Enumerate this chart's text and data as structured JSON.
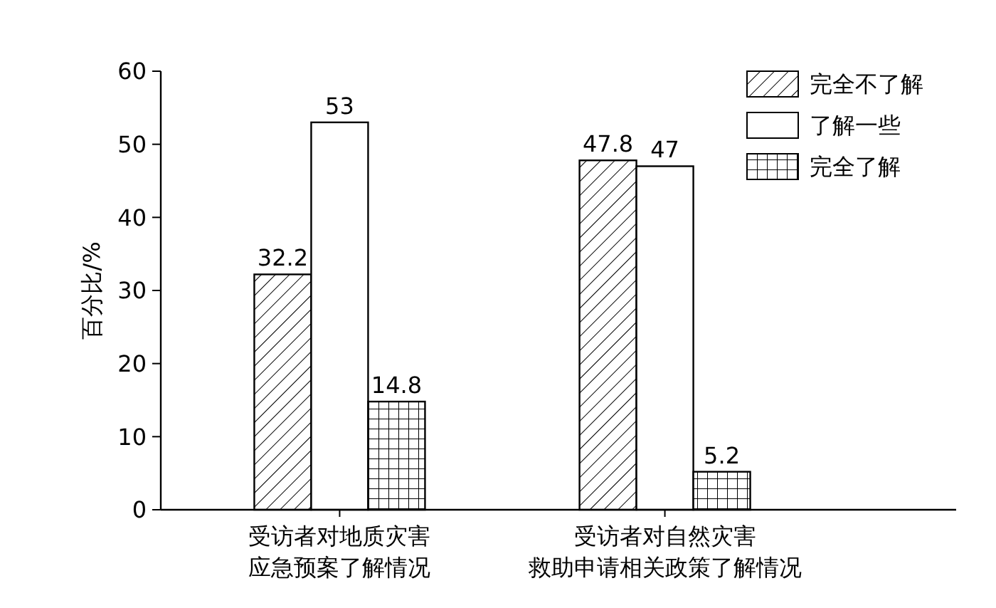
{
  "chart_data": {
    "type": "bar",
    "ylabel": "百分比/%",
    "categories": [
      "受访者对地质灾害应急预案了解情况",
      "受访者对自然灾害救助申请相关政策了解情况"
    ],
    "series": [
      {
        "name": "完全不了解",
        "color": "#ffffff",
        "values": [
          32.2,
          47.8
        ]
      },
      {
        "name": "了解一些",
        "color": "#ffffff",
        "values": [
          53,
          47
        ]
      },
      {
        "name": "完全了解",
        "color": "#ffffff",
        "values": [
          14.8,
          5.2
        ]
      }
    ],
    "ylim": [
      0,
      60
    ],
    "yticks": [
      0,
      10,
      20,
      30,
      40,
      50,
      60
    ],
    "data_labels": true,
    "legend": "top right",
    "grid": false
  }
}
